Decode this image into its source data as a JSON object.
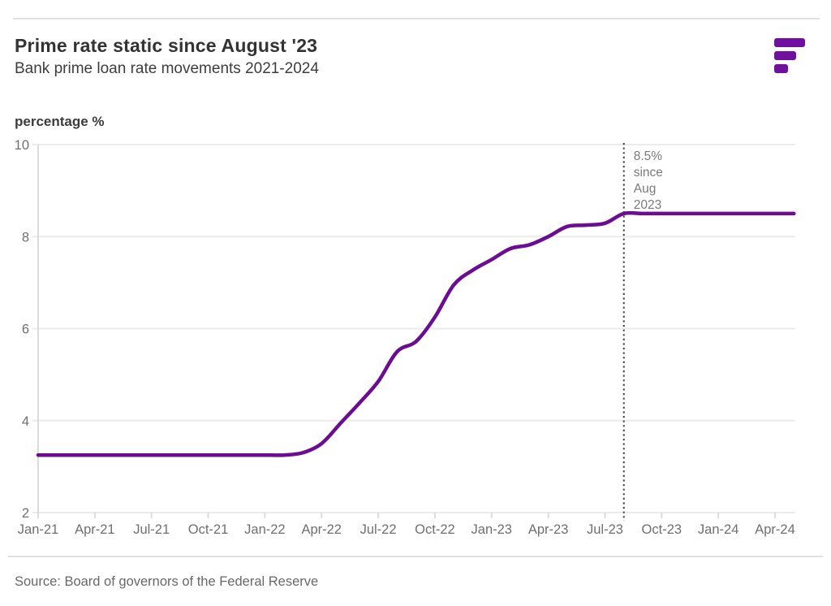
{
  "header": {
    "title": "Prime rate static since August '23",
    "subtitle": "Bank prime loan rate movements 2021-2024"
  },
  "logo": {
    "description": "three stacked purple bars, widths decreasing downward",
    "color": "#7110A0"
  },
  "theme": {
    "accent_purple": "#6C0B93",
    "logo_purple": "#7110A0",
    "grid_color": "#ebebeb",
    "axis_color": "#dcdcdc",
    "tick_text_color": "#6f6f6f",
    "annotation_line_color": "#3f3f3f"
  },
  "source": {
    "text": "Source: Board of governors of the Federal Reserve"
  },
  "chart_data": {
    "type": "line",
    "title": "Prime rate static since August '23",
    "subtitle": "Bank prime loan rate movements 2021-2024",
    "ylabel": "percentage %",
    "xlabel": "",
    "ylim": [
      2,
      10
    ],
    "yticks": [
      2,
      4,
      6,
      8,
      10
    ],
    "grid": "horizontal",
    "legend": "none",
    "x": [
      "Jan-21",
      "Feb-21",
      "Mar-21",
      "Apr-21",
      "May-21",
      "Jun-21",
      "Jul-21",
      "Aug-21",
      "Sep-21",
      "Oct-21",
      "Nov-21",
      "Dec-21",
      "Jan-22",
      "Feb-22",
      "Mar-22",
      "Apr-22",
      "May-22",
      "Jun-22",
      "Jul-22",
      "Aug-22",
      "Sep-22",
      "Oct-22",
      "Nov-22",
      "Dec-22",
      "Jan-23",
      "Feb-23",
      "Mar-23",
      "Apr-23",
      "May-23",
      "Jun-23",
      "Jul-23",
      "Aug-23",
      "Sep-23",
      "Oct-23",
      "Nov-23",
      "Dec-23",
      "Jan-24",
      "Feb-24",
      "Mar-24",
      "Apr-24",
      "May-24"
    ],
    "x_tick_labels": [
      "Jan-21",
      "Apr-21",
      "Jul-21",
      "Oct-21",
      "Jan-22",
      "Apr-22",
      "Jul-22",
      "Oct-22",
      "Jan-23",
      "Apr-23",
      "Jul-23",
      "Oct-23",
      "Jan-24",
      "Apr-24"
    ],
    "series": [
      {
        "name": "Bank prime loan rate",
        "color": "#6C0B93",
        "values": [
          3.25,
          3.25,
          3.25,
          3.25,
          3.25,
          3.25,
          3.25,
          3.25,
          3.25,
          3.25,
          3.25,
          3.25,
          3.25,
          3.25,
          3.3,
          3.5,
          3.94,
          4.38,
          4.85,
          5.5,
          5.72,
          6.25,
          6.95,
          7.27,
          7.5,
          7.74,
          7.82,
          8.0,
          8.22,
          8.25,
          8.29,
          8.5,
          8.5,
          8.5,
          8.5,
          8.5,
          8.5,
          8.5,
          8.5,
          8.5,
          8.5
        ]
      }
    ],
    "annotation": {
      "x": "Aug-23",
      "label_lines": [
        "8.5%",
        "since",
        "Aug",
        "2023"
      ],
      "line_style": "dotted vertical rule"
    }
  }
}
